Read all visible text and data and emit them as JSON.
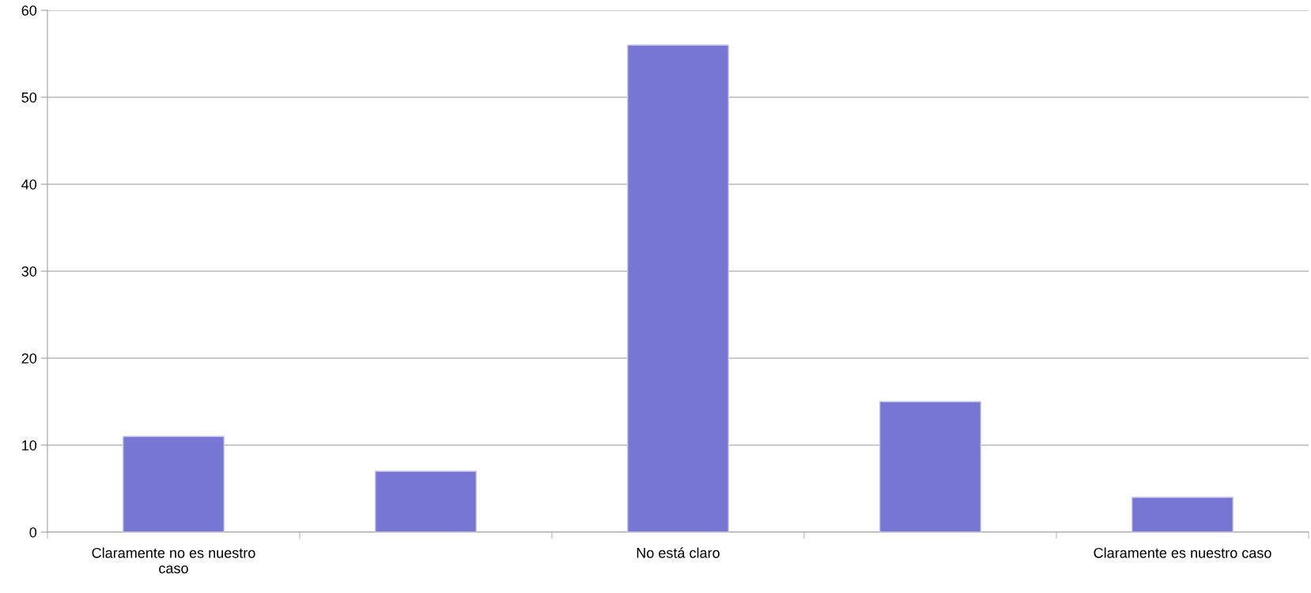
{
  "chart_data": {
    "type": "bar",
    "categories": [
      "Claramente no es nuestro caso",
      null,
      "No está claro",
      null,
      "Claramente es nuestro caso"
    ],
    "values": [
      11,
      7,
      56,
      15,
      4
    ],
    "color": "#7777d3",
    "ylim": [
      0,
      60
    ],
    "yticks": [
      0,
      10,
      20,
      30,
      40,
      50,
      60
    ],
    "grid": "y",
    "legend": false
  }
}
